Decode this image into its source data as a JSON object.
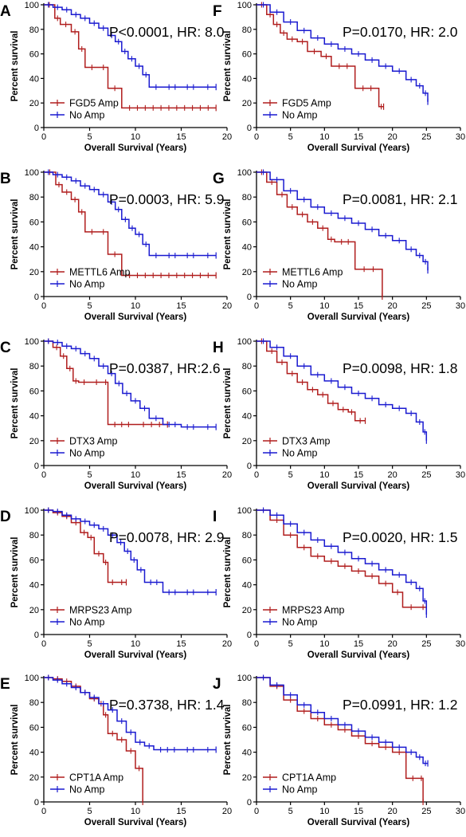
{
  "figure": {
    "ylabel": "Percent survival",
    "xlabel": "Overall Survival (Years)",
    "colors": {
      "amp": "#b01d1d",
      "noamp": "#1a1ad0"
    }
  },
  "chart_data": [
    {
      "panel": "A",
      "type": "line",
      "stat": "P<0.0001, HR: 8.0",
      "xlim": [
        0,
        20
      ],
      "ylim": [
        0,
        100
      ],
      "xticks": [
        0,
        5,
        10,
        15,
        20
      ],
      "yticks": [
        0,
        20,
        40,
        60,
        80,
        100
      ],
      "series": [
        {
          "name": "FGD5 Amp",
          "color": "#b01d1d",
          "x": [
            0,
            1.2,
            1.8,
            3.0,
            3.8,
            4.5,
            6.0,
            7.0,
            8.5,
            18.8
          ],
          "y": [
            100,
            89,
            84,
            78,
            64,
            49,
            49,
            32,
            16,
            16
          ]
        },
        {
          "name": "No Amp",
          "color": "#1a1ad0",
          "x": [
            0,
            1,
            2,
            3,
            4,
            5,
            6,
            7,
            7.8,
            8.5,
            9.2,
            10,
            10.8,
            11.5,
            13,
            15,
            17,
            18.8
          ],
          "y": [
            100,
            98,
            96,
            92,
            89,
            85,
            81,
            75,
            70,
            62,
            56,
            50,
            43,
            33,
            33,
            33,
            33,
            33
          ]
        }
      ]
    },
    {
      "panel": "F",
      "type": "line",
      "stat": "P=0.0170, HR: 2.0",
      "xlim": [
        0,
        30
      ],
      "ylim": [
        0,
        100
      ],
      "xticks": [
        0,
        5,
        10,
        15,
        20,
        25,
        30
      ],
      "yticks": [
        0,
        20,
        40,
        60,
        80,
        100
      ],
      "series": [
        {
          "name": "FGD5 Amp",
          "color": "#b01d1d",
          "x": [
            0,
            1.5,
            2.5,
            3.5,
            4.5,
            6,
            7.5,
            9.5,
            11,
            14.5,
            18,
            18.7
          ],
          "y": [
            100,
            92,
            84,
            77,
            72,
            70,
            62,
            58,
            50,
            32,
            17,
            17
          ]
        },
        {
          "name": "No Amp",
          "color": "#1a1ad0",
          "x": [
            0,
            2,
            4,
            6,
            8,
            10,
            12,
            14,
            16,
            18,
            20,
            22,
            23.5,
            24.5,
            25.2
          ],
          "y": [
            100,
            94,
            86,
            79,
            73,
            68,
            64,
            60,
            55,
            50,
            46,
            39,
            34,
            28,
            21
          ]
        }
      ]
    },
    {
      "panel": "B",
      "type": "line",
      "stat": "P=0.0003, HR: 5.9",
      "xlim": [
        0,
        20
      ],
      "ylim": [
        0,
        100
      ],
      "xticks": [
        0,
        5,
        10,
        15,
        20
      ],
      "yticks": [
        0,
        20,
        40,
        60,
        80,
        100
      ],
      "series": [
        {
          "name": "METTL6 Amp",
          "color": "#b01d1d",
          "x": [
            0,
            1.3,
            2,
            3,
            3.8,
            4.5,
            6,
            7,
            8.5,
            18.8
          ],
          "y": [
            100,
            90,
            84,
            78,
            68,
            52,
            52,
            34,
            17,
            17
          ]
        },
        {
          "name": "No Amp",
          "color": "#1a1ad0",
          "x": [
            0,
            1,
            2,
            3,
            4,
            5,
            6,
            7,
            7.8,
            8.5,
            9.3,
            10,
            10.8,
            11.5,
            13,
            15,
            17,
            18.8
          ],
          "y": [
            100,
            98,
            96,
            93,
            89,
            86,
            82,
            76,
            70,
            62,
            55,
            50,
            42,
            33,
            33,
            33,
            33,
            33
          ]
        }
      ]
    },
    {
      "panel": "G",
      "type": "line",
      "stat": "P=0.0081, HR: 2.1",
      "xlim": [
        0,
        30
      ],
      "ylim": [
        0,
        100
      ],
      "xticks": [
        0,
        5,
        10,
        15,
        20,
        25,
        30
      ],
      "yticks": [
        0,
        20,
        40,
        60,
        80,
        100
      ],
      "series": [
        {
          "name": "METTL6 Amp",
          "color": "#b01d1d",
          "x": [
            0,
            1.5,
            3,
            4.5,
            6,
            7.5,
            9,
            10.5,
            11.5,
            14.5,
            18.5
          ],
          "y": [
            100,
            92,
            82,
            72,
            66,
            60,
            55,
            46,
            44,
            22,
            0
          ]
        },
        {
          "name": "No Amp",
          "color": "#1a1ad0",
          "x": [
            0,
            2,
            4,
            6,
            8,
            10,
            12,
            14,
            16,
            18,
            20,
            22,
            23.5,
            24.5,
            25.2
          ],
          "y": [
            100,
            94,
            85,
            78,
            72,
            67,
            63,
            59,
            54,
            49,
            45,
            38,
            33,
            28,
            21
          ]
        }
      ]
    },
    {
      "panel": "C",
      "type": "line",
      "stat": "P=0.0387, HR:2.6",
      "xlim": [
        0,
        20
      ],
      "ylim": [
        0,
        100
      ],
      "xticks": [
        0,
        5,
        10,
        15,
        20
      ],
      "yticks": [
        0,
        20,
        40,
        60,
        80,
        100
      ],
      "series": [
        {
          "name": "DTX3 Amp",
          "color": "#b01d1d",
          "x": [
            0,
            1,
            1.8,
            2.5,
            3.2,
            3.8,
            5,
            6.5,
            7,
            10,
            13.5
          ],
          "y": [
            100,
            95,
            88,
            78,
            68,
            67,
            67,
            67,
            33,
            33,
            33
          ]
        },
        {
          "name": "No Amp",
          "color": "#1a1ad0",
          "x": [
            0,
            1,
            2,
            3,
            4,
            5,
            6,
            7,
            7.8,
            8.6,
            9.5,
            10.5,
            11.5,
            13,
            15,
            17,
            18.8
          ],
          "y": [
            100,
            99,
            96,
            94,
            90,
            86,
            80,
            74,
            66,
            58,
            52,
            46,
            38,
            33,
            31,
            31,
            31
          ]
        }
      ]
    },
    {
      "panel": "H",
      "type": "line",
      "stat": "P=0.0098, HR: 1.8",
      "xlim": [
        0,
        30
      ],
      "ylim": [
        0,
        100
      ],
      "xticks": [
        0,
        5,
        10,
        15,
        20,
        25,
        30
      ],
      "yticks": [
        0,
        20,
        40,
        60,
        80,
        100
      ],
      "series": [
        {
          "name": "DTX3 Amp",
          "color": "#b01d1d",
          "x": [
            0,
            1.5,
            3,
            4.5,
            6,
            7.5,
            9,
            10.5,
            12,
            13.5,
            14.5,
            16
          ],
          "y": [
            100,
            92,
            83,
            74,
            67,
            61,
            57,
            50,
            45,
            43,
            36,
            36
          ]
        },
        {
          "name": "No Amp",
          "color": "#1a1ad0",
          "x": [
            0,
            2,
            4,
            6,
            8,
            10,
            12,
            14,
            16,
            18,
            20,
            22,
            23.5,
            24.5,
            25
          ],
          "y": [
            100,
            95,
            88,
            80,
            73,
            68,
            63,
            58,
            54,
            49,
            46,
            42,
            35,
            27,
            20
          ]
        }
      ]
    },
    {
      "panel": "D",
      "type": "line",
      "stat": "P=0.0078, HR: 2.9",
      "xlim": [
        0,
        20
      ],
      "ylim": [
        0,
        100
      ],
      "xticks": [
        0,
        5,
        10,
        15,
        20
      ],
      "yticks": [
        0,
        20,
        40,
        60,
        80,
        100
      ],
      "series": [
        {
          "name": "MRPS23 Amp",
          "color": "#b01d1d",
          "x": [
            0,
            1,
            2,
            3,
            4,
            4.8,
            5.5,
            6.5,
            7,
            8,
            9
          ],
          "y": [
            100,
            98,
            95,
            90,
            82,
            78,
            65,
            58,
            42,
            42,
            42
          ]
        },
        {
          "name": "No Amp",
          "color": "#1a1ad0",
          "x": [
            0,
            1,
            2,
            3,
            4,
            5,
            6,
            7,
            8,
            8.8,
            9.5,
            10.2,
            11,
            13,
            15,
            17,
            18.8
          ],
          "y": [
            100,
            99,
            96,
            93,
            91,
            88,
            85,
            80,
            74,
            67,
            60,
            52,
            42,
            34,
            34,
            34,
            34
          ]
        }
      ]
    },
    {
      "panel": "I",
      "type": "line",
      "stat": "P=0.0020, HR: 1.5",
      "xlim": [
        0,
        30
      ],
      "ylim": [
        0,
        100
      ],
      "xticks": [
        0,
        5,
        10,
        15,
        20,
        25,
        30
      ],
      "yticks": [
        0,
        20,
        40,
        60,
        80,
        100
      ],
      "series": [
        {
          "name": "MRPS23 Amp",
          "color": "#b01d1d",
          "x": [
            0,
            2,
            4,
            6,
            8,
            10,
            12,
            14,
            16,
            18,
            20,
            21.5,
            24,
            25
          ],
          "y": [
            100,
            92,
            80,
            70,
            63,
            59,
            55,
            51,
            47,
            41,
            34,
            22,
            22,
            22
          ]
        },
        {
          "name": "No Amp",
          "color": "#1a1ad0",
          "x": [
            0,
            2,
            4,
            6,
            8,
            10,
            12,
            14,
            16,
            18,
            20,
            22,
            23.5,
            24.5,
            25
          ],
          "y": [
            100,
            96,
            89,
            82,
            76,
            71,
            66,
            61,
            57,
            52,
            48,
            42,
            37,
            27,
            16
          ]
        }
      ]
    },
    {
      "panel": "E",
      "type": "line",
      "stat": "P=0.3738, HR: 1.4",
      "xlim": [
        0,
        20
      ],
      "ylim": [
        0,
        100
      ],
      "xticks": [
        0,
        5,
        10,
        15,
        20
      ],
      "yticks": [
        0,
        20,
        40,
        60,
        80,
        100
      ],
      "series": [
        {
          "name": "CPT1A Amp",
          "color": "#b01d1d",
          "x": [
            0,
            1,
            2,
            3,
            4,
            5,
            6,
            6.5,
            7,
            8,
            9,
            10,
            10.8
          ],
          "y": [
            100,
            99,
            97,
            93,
            88,
            83,
            79,
            70,
            55,
            50,
            41,
            27,
            0
          ]
        },
        {
          "name": "No Amp",
          "color": "#1a1ad0",
          "x": [
            0,
            1,
            2,
            3,
            4,
            5,
            6,
            7,
            8,
            9,
            10,
            11,
            12,
            15,
            17,
            18.8
          ],
          "y": [
            100,
            98,
            95,
            92,
            88,
            84,
            79,
            74,
            65,
            56,
            48,
            45,
            42,
            42,
            42,
            42
          ]
        }
      ]
    },
    {
      "panel": "J",
      "type": "line",
      "stat": "P=0.0991, HR: 1.2",
      "xlim": [
        0,
        30
      ],
      "ylim": [
        0,
        100
      ],
      "xticks": [
        0,
        5,
        10,
        15,
        20,
        25,
        30
      ],
      "yticks": [
        0,
        20,
        40,
        60,
        80,
        100
      ],
      "series": [
        {
          "name": "CPT1A Amp",
          "color": "#b01d1d",
          "x": [
            0,
            2,
            4,
            6,
            8,
            10,
            12,
            14,
            16,
            18,
            20,
            22,
            24,
            24.5
          ],
          "y": [
            100,
            93,
            82,
            73,
            67,
            62,
            58,
            53,
            47,
            44,
            40,
            19,
            19,
            0
          ]
        },
        {
          "name": "No Amp",
          "color": "#1a1ad0",
          "x": [
            0,
            2,
            4,
            6,
            8,
            10,
            12,
            14,
            16,
            18,
            20,
            22,
            23.5,
            24.5,
            25.2
          ],
          "y": [
            100,
            94,
            86,
            78,
            72,
            67,
            62,
            57,
            52,
            48,
            44,
            40,
            36,
            31,
            31
          ]
        }
      ]
    }
  ]
}
